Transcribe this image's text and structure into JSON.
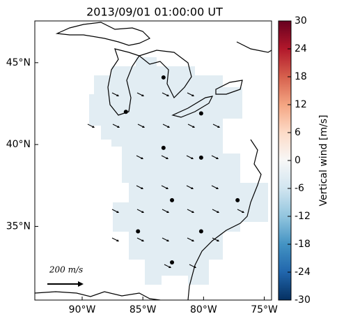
{
  "title": "2013/09/01 01:00:00 UT",
  "map": {
    "lonlim": [
      -93.9,
      -74.4
    ],
    "latlim": [
      30.5,
      47.55
    ],
    "lon_ticks": [
      {
        "value": -90,
        "label": "90°W"
      },
      {
        "value": -85,
        "label": "85°W"
      },
      {
        "value": -80,
        "label": "80°W"
      },
      {
        "value": -75,
        "label": "75°W"
      }
    ],
    "lat_ticks": [
      {
        "value": 45,
        "label": "45°N"
      },
      {
        "value": 40,
        "label": "40°N"
      },
      {
        "value": 35,
        "label": "35°N"
      }
    ],
    "stations": {
      "lon": [
        -86.4,
        -83.3,
        -80.2,
        -83.3,
        -80.2,
        -82.6,
        -77.2,
        -85.4,
        -80.2,
        -82.6
      ],
      "lat": [
        42.0,
        44.1,
        41.9,
        39.8,
        39.2,
        36.6,
        36.6,
        34.7,
        34.7,
        32.8
      ]
    }
  },
  "colorbar": {
    "label": "Vertical wind [m/s]",
    "range": [
      -30,
      30
    ],
    "ticks": [
      30,
      24,
      18,
      12,
      6,
      0,
      -6,
      -12,
      -18,
      -24,
      -30
    ]
  },
  "quiver_key": {
    "label": "200 m/s"
  }
}
